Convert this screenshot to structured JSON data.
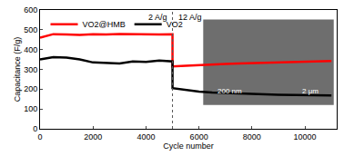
{
  "chart_data": {
    "type": "line",
    "x_label": "Cycle number",
    "y_label": "Capacitance (F/g)",
    "x": [
      0,
      500,
      1000,
      1500,
      2000,
      2500,
      3000,
      3500,
      4000,
      4500,
      5000,
      5001,
      5500,
      6000,
      6500,
      7000,
      7500,
      8000,
      8500,
      9000,
      9500,
      10000,
      10500,
      11000
    ],
    "series": [
      {
        "name": "VO2@HMB",
        "color": "#ff0000",
        "values": [
          460,
          478,
          476,
          474,
          478,
          476,
          479,
          477,
          478,
          476,
          477,
          315,
          318,
          322,
          325,
          328,
          330,
          332,
          334,
          336,
          338,
          340,
          341,
          342
        ]
      },
      {
        "name": "VO2",
        "color": "#000000",
        "values": [
          350,
          362,
          360,
          350,
          335,
          332,
          330,
          340,
          338,
          345,
          340,
          205,
          195,
          188,
          183,
          180,
          178,
          176,
          174,
          172,
          171,
          170,
          170,
          168
        ]
      }
    ],
    "xlim": [
      0,
      11200
    ],
    "xticks": [
      0,
      2000,
      4000,
      6000,
      8000,
      10000
    ],
    "ylim": [
      0,
      600
    ],
    "yticks": [
      0,
      100,
      200,
      300,
      400,
      500,
      600
    ],
    "divider_x": 5000,
    "rate_labels": [
      "2 A/g",
      "12 A/g"
    ],
    "inset_labels": [
      "200 nm",
      "2 μm"
    ],
    "grid": false,
    "legend": "top-left"
  }
}
